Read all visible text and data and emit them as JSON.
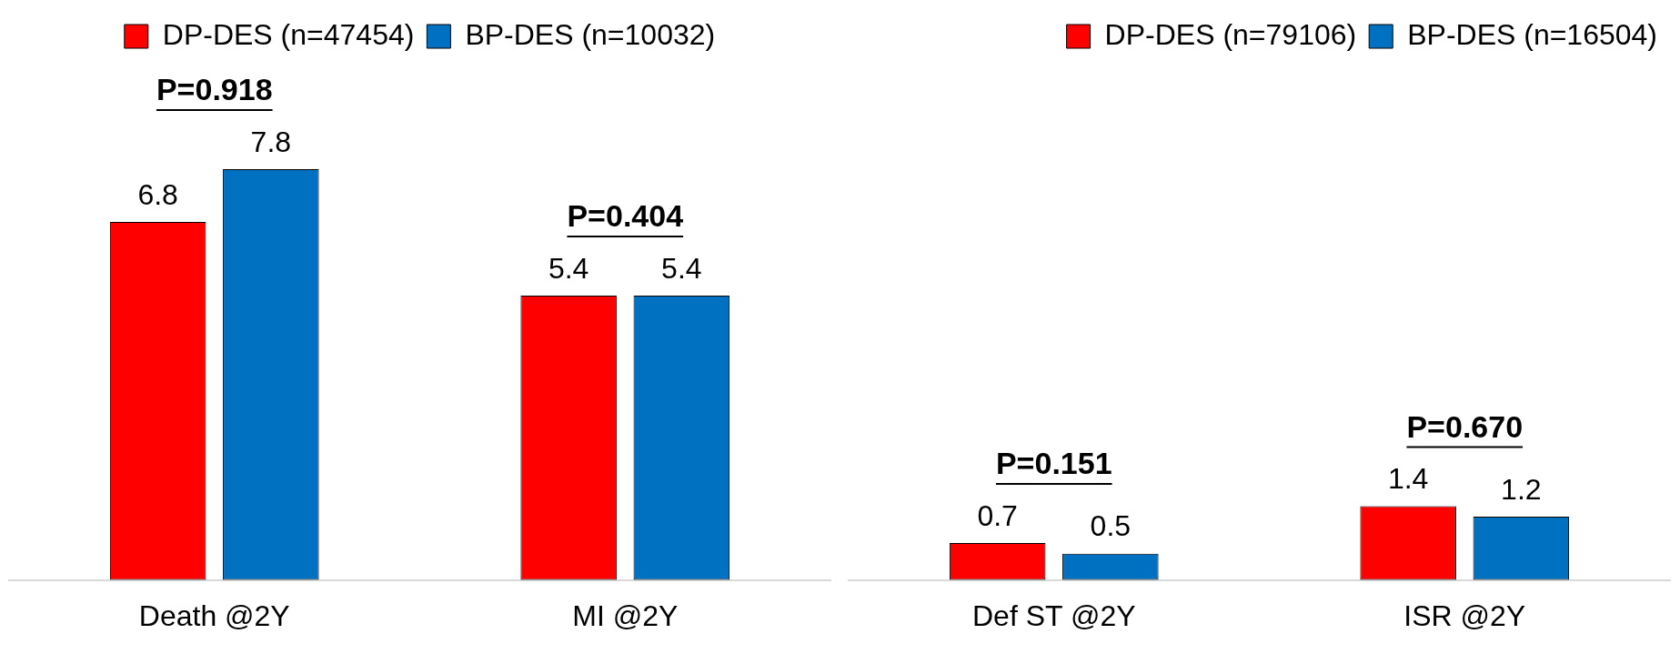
{
  "chart_data": [
    {
      "type": "bar",
      "categories": [
        "Death @2Y",
        "MI @2Y"
      ],
      "series": [
        {
          "name": "DP-DES (n=47454)",
          "color": "#ff0000",
          "values": [
            6.8,
            5.4
          ]
        },
        {
          "name": "BP-DES (n=10032)",
          "color": "#0070c0",
          "values": [
            7.8,
            5.4
          ]
        }
      ],
      "data_labels": true,
      "legend": "top",
      "annotations": [
        "P=0.918",
        "P=0.404"
      ]
    },
    {
      "type": "bar",
      "categories": [
        "Def ST @2Y",
        "ISR @2Y"
      ],
      "series": [
        {
          "name": "DP-DES (n=79106)",
          "color": "#ff0000",
          "values": [
            0.7,
            1.4
          ]
        },
        {
          "name": "BP-DES (n=16504)",
          "color": "#0070c0",
          "values": [
            0.5,
            1.2
          ]
        }
      ],
      "data_labels": true,
      "legend": "top right",
      "annotations": [
        "P=0.151",
        "P=0.670"
      ]
    }
  ]
}
